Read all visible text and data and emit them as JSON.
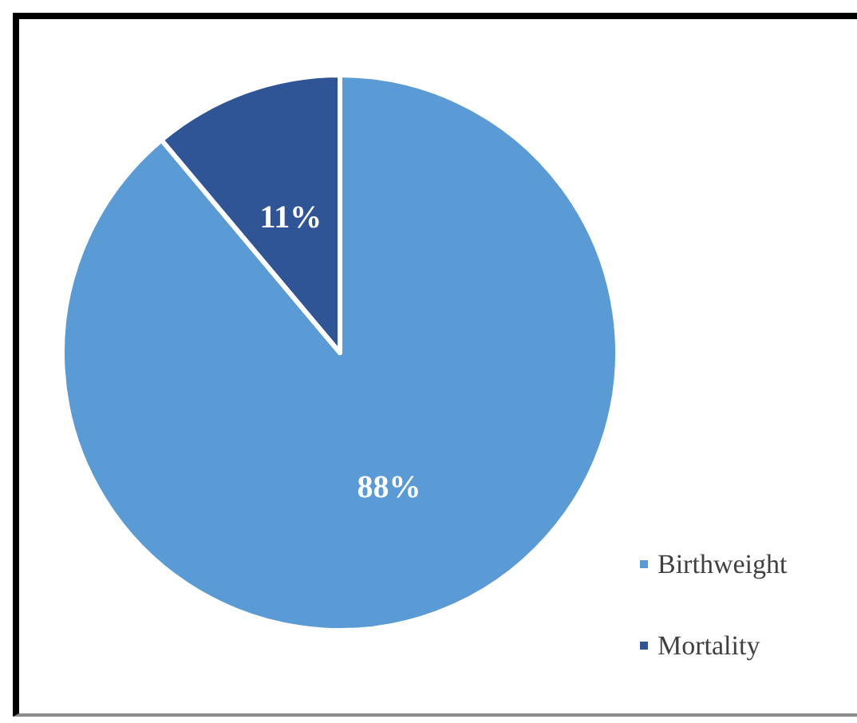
{
  "chart_data": {
    "type": "pie",
    "categories": [
      "Birthweight",
      "Mortality"
    ],
    "values": [
      88,
      11
    ],
    "colors": [
      "#5b9bd5",
      "#2f5597"
    ],
    "value_labels": [
      "88%",
      "11%"
    ],
    "legend": "bottom right"
  }
}
